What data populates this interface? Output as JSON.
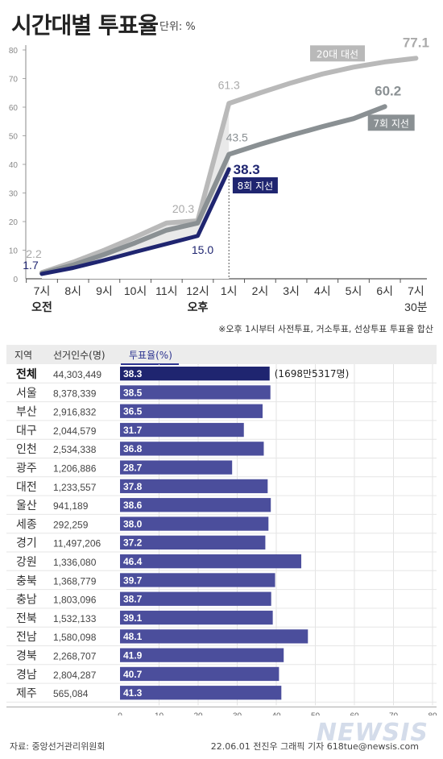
{
  "title": "시간대별 투표율",
  "unit": "단위: %",
  "note": "※오후 1시부터 사전투표, 거소투표, 선상투표 투표율 합산",
  "source": "자료: 중앙선거관리위원회",
  "credit": "22.06.01 전진우 그래픽 기자 618tue@newsis.com",
  "watermark": "NEWSIS",
  "colors": {
    "navy": "#1f2570",
    "lightgray": "#b9b9b9",
    "darkgray": "#8a9093",
    "bar": "#4b4e9c"
  },
  "chart_data": [
    {
      "type": "line",
      "x": [
        "7시",
        "8시",
        "9시",
        "10시",
        "11시",
        "12시",
        "1시",
        "2시",
        "3시",
        "4시",
        "5시",
        "6시",
        "7시 30분"
      ],
      "x_sublabels": {
        "7시": "오전",
        "12시": "오후"
      },
      "ylim": [
        0,
        80
      ],
      "yticks": [
        0,
        10,
        20,
        30,
        40,
        50,
        60,
        70,
        80
      ],
      "series": [
        {
          "name": "20대 대선",
          "color": "#b9b9b9",
          "values": [
            2.2,
            5.8,
            10.0,
            14.6,
            19.5,
            20.3,
            61.3,
            65.0,
            68.5,
            71.6,
            74.0,
            75.8,
            77.1
          ],
          "labels": {
            "0": "2.2",
            "5": "20.3",
            "6": "61.3",
            "12": "77.1"
          }
        },
        {
          "name": "7회 지선",
          "color": "#8a9093",
          "values": [
            1.9,
            4.8,
            8.5,
            12.6,
            17.0,
            19.5,
            43.5,
            47.0,
            50.2,
            53.2,
            56.0,
            60.2,
            null
          ],
          "labels": {
            "6": "43.5",
            "11": "60.2"
          }
        },
        {
          "name": "8회 지선",
          "color": "#1f2570",
          "values": [
            1.7,
            3.8,
            6.5,
            9.4,
            12.2,
            15.0,
            38.3,
            null,
            null,
            null,
            null,
            null,
            null
          ],
          "labels": {
            "0": "1.7",
            "5": "15.0",
            "6": "38.3"
          }
        }
      ]
    },
    {
      "type": "bar",
      "columns": {
        "region": "지역",
        "voters": "선거인수(명)",
        "turnout": "투표율(%)"
      },
      "categories": [
        "전체",
        "서울",
        "부산",
        "대구",
        "인천",
        "광주",
        "대전",
        "울산",
        "세종",
        "경기",
        "강원",
        "충북",
        "충남",
        "전북",
        "전남",
        "경북",
        "경남",
        "제주"
      ],
      "voters": [
        "44,303,449",
        "8,378,339",
        "2,916,832",
        "2,044,579",
        "2,534,338",
        "1,206,886",
        "1,233,557",
        "941,189",
        "292,259",
        "11,497,206",
        "1,336,080",
        "1,368,779",
        "1,803,096",
        "1,532,133",
        "1,580,098",
        "2,268,707",
        "2,804,287",
        "565,084"
      ],
      "values": [
        38.3,
        38.5,
        36.5,
        31.7,
        36.8,
        28.7,
        37.8,
        38.6,
        38.0,
        37.2,
        46.4,
        39.7,
        38.7,
        39.1,
        48.1,
        41.9,
        40.7,
        41.3
      ],
      "total_note": "(1698만5317명)",
      "xlim": [
        0,
        80
      ],
      "xticks": [
        0,
        10,
        20,
        30,
        40,
        50,
        60,
        70,
        80
      ]
    }
  ]
}
